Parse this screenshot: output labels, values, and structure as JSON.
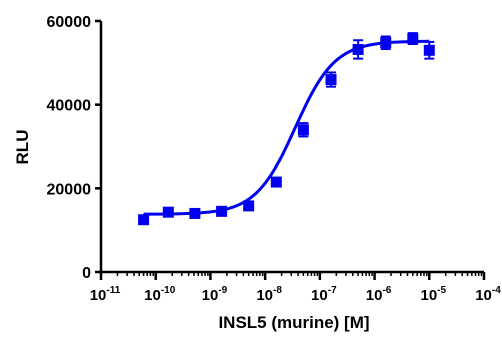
{
  "chart_data": {
    "type": "scatter",
    "title": "",
    "xlabel": "INSL5 (murine) [M]",
    "ylabel": "RLU",
    "x_scale": "log",
    "xlim_exponents": [
      -11,
      -4
    ],
    "x_tick_exponents": [
      -11,
      -10,
      -9,
      -8,
      -7,
      -6,
      -5,
      -4
    ],
    "x_tick_base": "10",
    "ylim": [
      0,
      60000
    ],
    "y_ticks": [
      "0",
      "20000",
      "40000",
      "60000"
    ],
    "grid": false,
    "legend": "none",
    "colors": {
      "series": "#0000ee",
      "axes": "#000000"
    },
    "series": [
      {
        "points": [
          {
            "x": 6e-11,
            "y": 12500,
            "err": 700
          },
          {
            "x": 1.7e-10,
            "y": 14300,
            "err": 500
          },
          {
            "x": 5.2e-10,
            "y": 14000,
            "err": 500
          },
          {
            "x": 1.6e-09,
            "y": 14500,
            "err": 600
          },
          {
            "x": 5e-09,
            "y": 15800,
            "err": 700
          },
          {
            "x": 1.6e-08,
            "y": 21500,
            "err": 800
          },
          {
            "x": 5e-08,
            "y": 34000,
            "err": 1600
          },
          {
            "x": 1.6e-07,
            "y": 46000,
            "err": 1700
          },
          {
            "x": 5e-07,
            "y": 53200,
            "err": 2200
          },
          {
            "x": 1.6e-06,
            "y": 54800,
            "err": 1500
          },
          {
            "x": 5e-06,
            "y": 55800,
            "err": 1300
          },
          {
            "x": 1e-05,
            "y": 53000,
            "err": 2000
          }
        ]
      }
    ],
    "fit_curve": {
      "model": "four-parameter logistic",
      "bottom": 13800,
      "top": 55200,
      "log_ec50": -7.45,
      "hill_slope": 1.2,
      "x_range": [
        6e-11,
        1e-05
      ]
    }
  }
}
